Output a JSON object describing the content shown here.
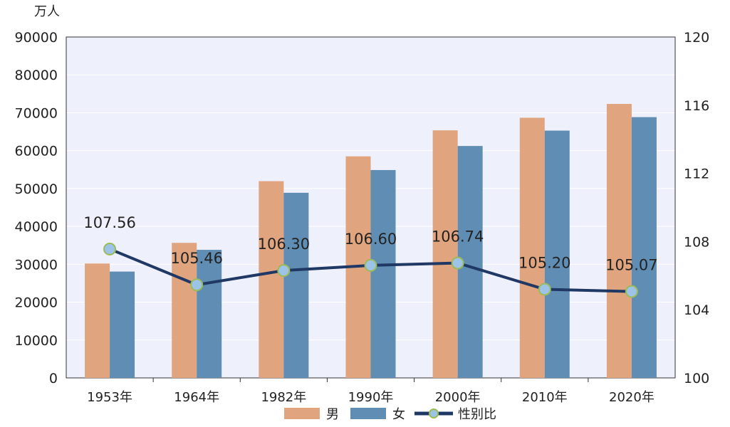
{
  "chart_data": {
    "type": "bar+line",
    "ylabel_left": "万人",
    "categories": [
      "1953年",
      "1964年",
      "1982年",
      "1990年",
      "2000年",
      "2010年",
      "2020年"
    ],
    "series": [
      {
        "name": "男",
        "type": "bar",
        "axis": "left",
        "color": "#E0A47E",
        "values": [
          30190,
          35650,
          51940,
          58495,
          65355,
          68685,
          72334
        ]
      },
      {
        "name": "女",
        "type": "bar",
        "axis": "left",
        "color": "#5F8DB3",
        "values": [
          28070,
          33810,
          48870,
          54873,
          61228,
          65287,
          68844
        ]
      },
      {
        "name": "性别比",
        "type": "line",
        "axis": "right",
        "color": "#1F3864",
        "marker_fill": "#9DC3E6",
        "marker_edge": "#9BBB59",
        "values": [
          107.56,
          105.46,
          106.3,
          106.6,
          106.74,
          105.2,
          105.07
        ],
        "labels": [
          "107.56",
          "105.46",
          "106.30",
          "106.60",
          "106.74",
          "105.20",
          "105.07"
        ]
      }
    ],
    "ylim_left": [
      0,
      90000
    ],
    "yticks_left": [
      "0",
      "10000",
      "20000",
      "30000",
      "40000",
      "50000",
      "60000",
      "70000",
      "80000",
      "90000"
    ],
    "ylim_right": [
      100,
      120
    ],
    "yticks_right": [
      "100",
      "104",
      "108",
      "112",
      "116",
      "120"
    ],
    "grid": true,
    "plot_background": "#EEF0FB",
    "legend_position": "bottom"
  }
}
